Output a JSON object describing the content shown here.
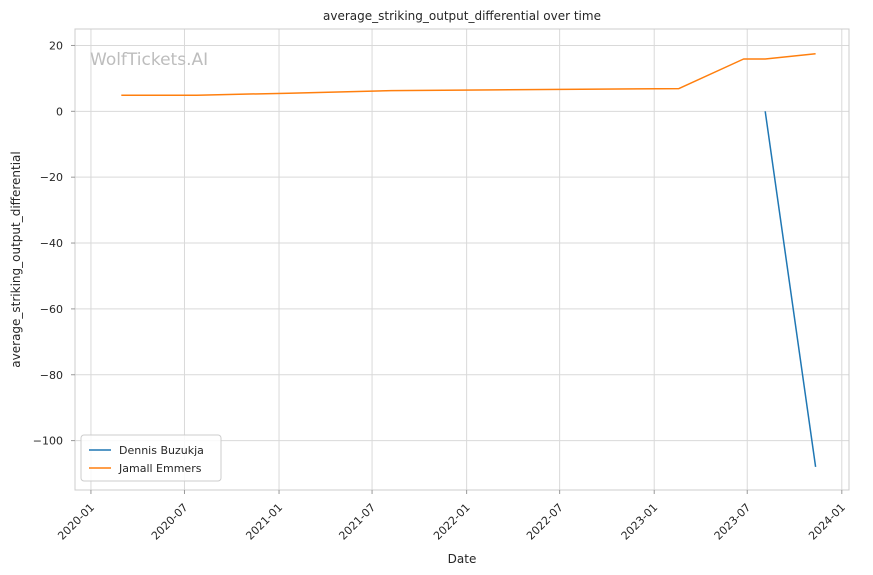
{
  "chart_data": {
    "type": "line",
    "title": "average_striking_output_differential over time",
    "xlabel": "Date",
    "ylabel": "average_striking_output_differential",
    "watermark": "WolfTickets.AI",
    "xlim": [
      "2019-12-01",
      "2024-01-15"
    ],
    "ylim": [
      -115,
      25
    ],
    "x_ticks": [
      "2020-01",
      "2020-07",
      "2021-01",
      "2021-07",
      "2022-01",
      "2022-07",
      "2023-01",
      "2023-07",
      "2024-01"
    ],
    "y_ticks": [
      20,
      0,
      -20,
      -40,
      -60,
      -80,
      -100
    ],
    "y_tick_labels": [
      "20",
      "0",
      "−20",
      "−40",
      "−60",
      "−80",
      "−100"
    ],
    "grid": true,
    "legend_position": "lower-left",
    "series": [
      {
        "name": "Dennis Buzukja",
        "color": "#1f77b4",
        "points": [
          {
            "x": "2023-08-05",
            "y": 0
          },
          {
            "x": "2023-11-11",
            "y": -108
          }
        ]
      },
      {
        "name": "Jamall Emmers",
        "color": "#ff7f0e",
        "points": [
          {
            "x": "2020-02-29",
            "y": 4.9
          },
          {
            "x": "2020-07-25",
            "y": 4.9
          },
          {
            "x": "2021-01-20",
            "y": 5.5
          },
          {
            "x": "2021-08-07",
            "y": 6.3
          },
          {
            "x": "2022-02-26",
            "y": 6.5
          },
          {
            "x": "2023-02-18",
            "y": 6.9
          },
          {
            "x": "2023-06-24",
            "y": 15.9
          },
          {
            "x": "2023-08-05",
            "y": 15.9
          },
          {
            "x": "2023-11-11",
            "y": 17.5
          }
        ]
      }
    ]
  }
}
